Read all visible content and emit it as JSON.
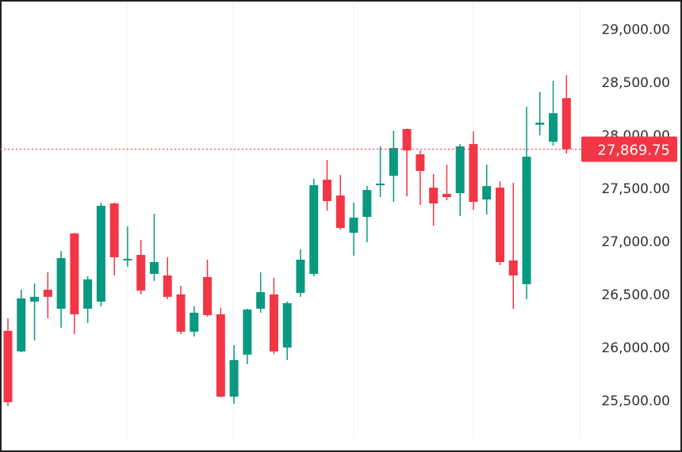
{
  "chart_data": {
    "type": "candlestick",
    "title": "",
    "xlabel": "",
    "ylabel": "",
    "ylim": [
      25300,
      29150
    ],
    "y_ticks": [
      "29,000.00",
      "28,500.00",
      "28,000.00",
      "27,500.00",
      "27,000.00",
      "26,500.00",
      "26,000.00",
      "25,500.00"
    ],
    "y_tick_values": [
      29000,
      28500,
      28000,
      27500,
      27000,
      26500,
      26000,
      25500
    ],
    "grid": "vertical only",
    "last_price": 27869.75,
    "last_price_label": "27,869.75",
    "colors": {
      "up": "#089981",
      "down": "#f23645",
      "last_price": "#f23645"
    },
    "candles": [
      [
        26157,
        26276,
        25448,
        25485
      ],
      [
        25963,
        26545,
        25955,
        26463
      ],
      [
        26433,
        26604,
        26067,
        26478
      ],
      [
        26545,
        26709,
        26276,
        26478
      ],
      [
        26366,
        26910,
        26187,
        26843
      ],
      [
        27075,
        27080,
        26127,
        26313
      ],
      [
        26366,
        26672,
        26231,
        26642
      ],
      [
        26433,
        27366,
        26388,
        27336
      ],
      [
        27358,
        27366,
        26679,
        26851
      ],
      [
        26821,
        27142,
        26761,
        26836
      ],
      [
        26873,
        27015,
        26500,
        26537
      ],
      [
        26694,
        27261,
        26627,
        26806
      ],
      [
        26679,
        26851,
        26455,
        26478
      ],
      [
        26500,
        26582,
        26127,
        26149
      ],
      [
        26149,
        26388,
        26104,
        26328
      ],
      [
        26664,
        26828,
        26291,
        26306
      ],
      [
        26313,
        26373,
        25530,
        25537
      ],
      [
        25537,
        26022,
        25470,
        25881
      ],
      [
        25933,
        26366,
        25843,
        26358
      ],
      [
        26366,
        26709,
        26328,
        26522
      ],
      [
        26500,
        26657,
        25940,
        25963
      ],
      [
        26000,
        26433,
        25881,
        26418
      ],
      [
        26515,
        26925,
        26478,
        26828
      ],
      [
        26694,
        27590,
        26672,
        27530
      ],
      [
        27582,
        27769,
        27291,
        27381
      ],
      [
        27433,
        27627,
        27112,
        27127
      ],
      [
        27082,
        27366,
        26866,
        27224
      ],
      [
        27231,
        27522,
        26993,
        27485
      ],
      [
        27537,
        27896,
        27418,
        27545
      ],
      [
        27619,
        28045,
        27373,
        27881
      ],
      [
        28060,
        28065,
        27425,
        27858
      ],
      [
        27821,
        27858,
        27343,
        27664
      ],
      [
        27507,
        27634,
        27149,
        27358
      ],
      [
        27448,
        27724,
        27388,
        27418
      ],
      [
        27455,
        27918,
        27239,
        27896
      ],
      [
        27918,
        28037,
        27299,
        27373
      ],
      [
        27396,
        27724,
        27254,
        27522
      ],
      [
        27507,
        27567,
        26776,
        26806
      ],
      [
        26821,
        27552,
        26366,
        26679
      ],
      [
        26597,
        28269,
        26455,
        27799
      ],
      [
        28100,
        28410,
        28000,
        28120
      ],
      [
        27940,
        28515,
        27903,
        28209
      ],
      [
        28351,
        28567,
        27828,
        27869.75
      ]
    ]
  }
}
